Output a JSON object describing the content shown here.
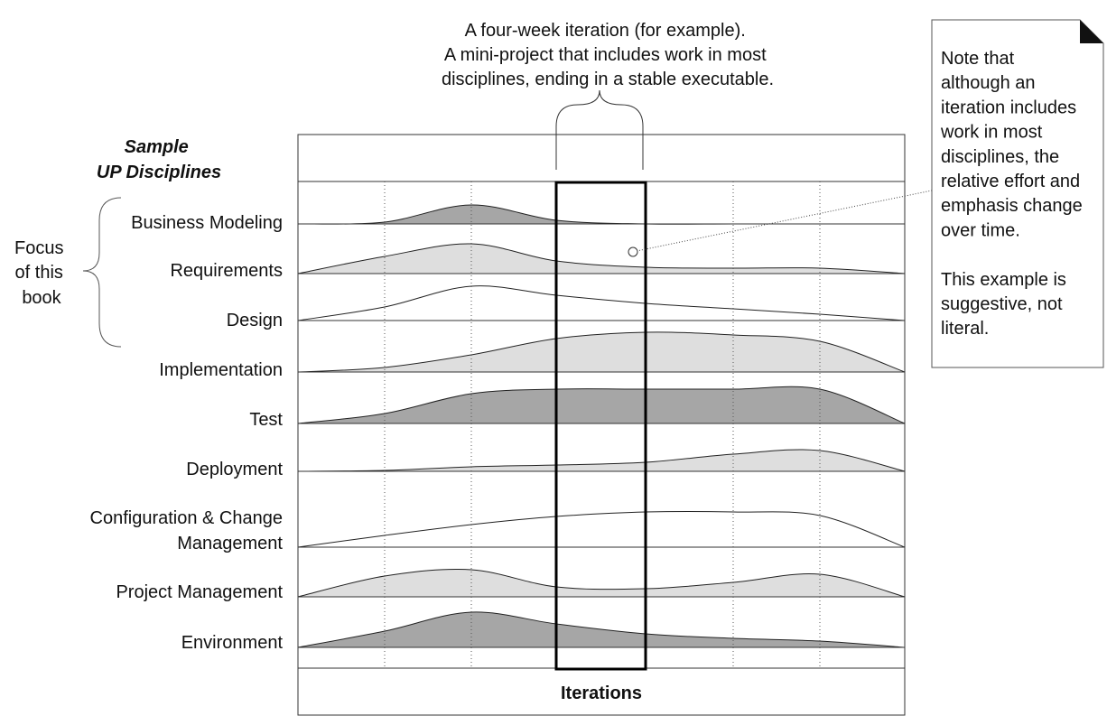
{
  "sample_heading": [
    "Sample",
    "UP Disciplines"
  ],
  "focus_label": [
    "Focus",
    "of this",
    "book"
  ],
  "iteration_caption": [
    "A four-week iteration (for example).",
    "A mini-project that includes work in most",
    "disciplines, ending in a stable executable."
  ],
  "note": {
    "lines": [
      "Note that",
      "although an",
      "iteration includes",
      "work in most",
      "disciplines, the",
      "relative effort and",
      "emphasis change",
      "over time.",
      "",
      "This example is",
      "suggestive, not",
      "literal."
    ]
  },
  "axis_label": "Iterations",
  "disciplines": [
    {
      "label": [
        "Business Modeling"
      ],
      "shade": "dark"
    },
    {
      "label": [
        "Requirements"
      ],
      "shade": "light"
    },
    {
      "label": [
        "Design"
      ],
      "shade": "none"
    },
    {
      "label": [
        "Implementation"
      ],
      "shade": "light"
    },
    {
      "label": [
        "Test"
      ],
      "shade": "dark"
    },
    {
      "label": [
        "Deployment"
      ],
      "shade": "light"
    },
    {
      "label": [
        "Configuration & Change",
        "Management"
      ],
      "shade": "none"
    },
    {
      "label": [
        "Project Management"
      ],
      "shade": "light"
    },
    {
      "label": [
        "Environment"
      ],
      "shade": "dark"
    }
  ],
  "colors": {
    "dark": "#a6a6a6",
    "light": "#dedede",
    "none": "#ffffff",
    "line": "#222222"
  }
}
